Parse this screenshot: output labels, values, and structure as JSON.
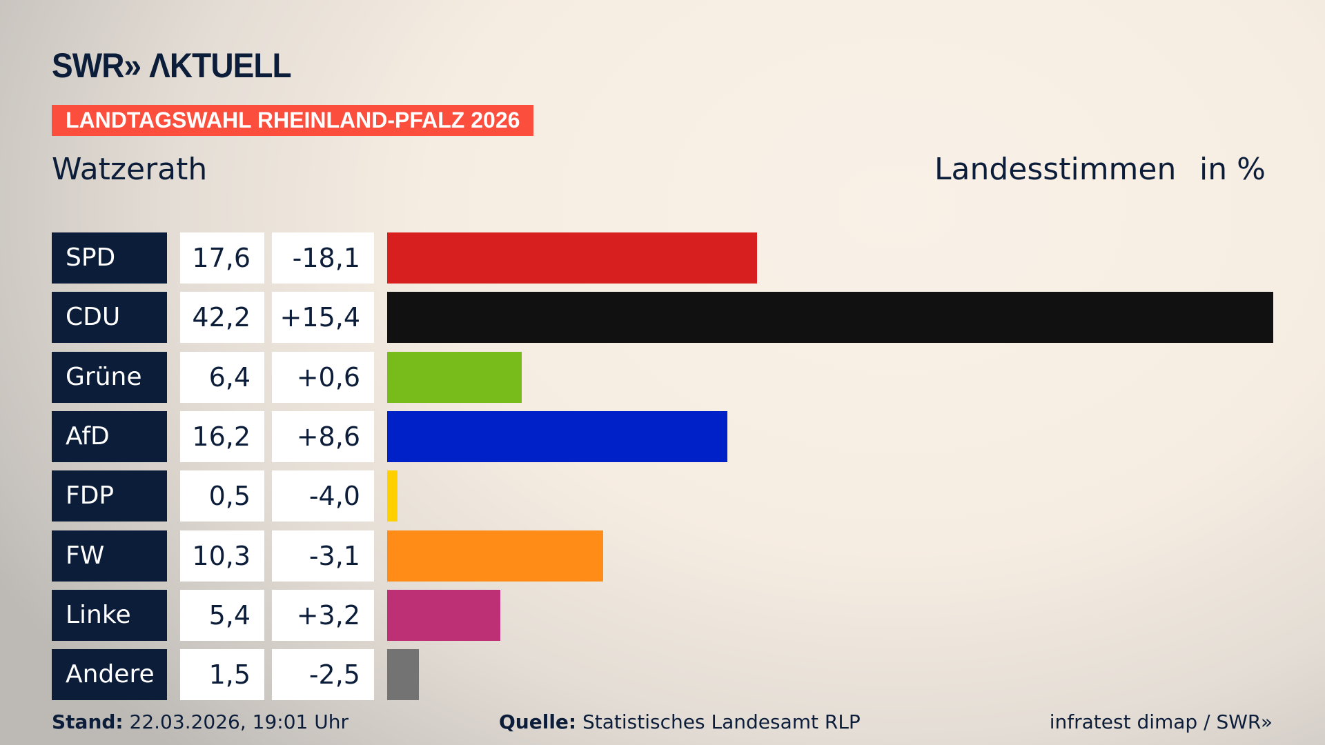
{
  "logo": "SWR» ΛKTUELL",
  "banner": "LANDTAGSWAHL RHEINLAND-PFALZ 2026",
  "place": "Watzerath",
  "measure": "Landesstimmen",
  "unit": "in %",
  "chart_data": {
    "type": "bar",
    "orientation": "horizontal",
    "categories": [
      "SPD",
      "CDU",
      "Grüne",
      "AfD",
      "FDP",
      "FW",
      "Linke",
      "Andere"
    ],
    "values": [
      17.6,
      42.2,
      6.4,
      16.2,
      0.5,
      10.3,
      5.4,
      1.5
    ],
    "values_label": [
      "17,6",
      "42,2",
      "6,4",
      "16,2",
      "0,5",
      "10,3",
      "5,4",
      "1,5"
    ],
    "changes": [
      "-18,1",
      "+15,4",
      "+0,6",
      "+8,6",
      "-4,0",
      "-3,1",
      "+3,2",
      "-2,5"
    ],
    "colors": [
      "#d81f1f",
      "#111111",
      "#78bc1b",
      "#0020c8",
      "#ffd000",
      "#ff8c17",
      "#be3075",
      "#737373"
    ]
  },
  "footer": {
    "stand_label": "Stand:",
    "stand": "22.03.2026, 19:01 Uhr",
    "source_label": "Quelle:",
    "source": "Statistisches Landesamt RLP",
    "credit": "infratest dimap / SWR»"
  }
}
